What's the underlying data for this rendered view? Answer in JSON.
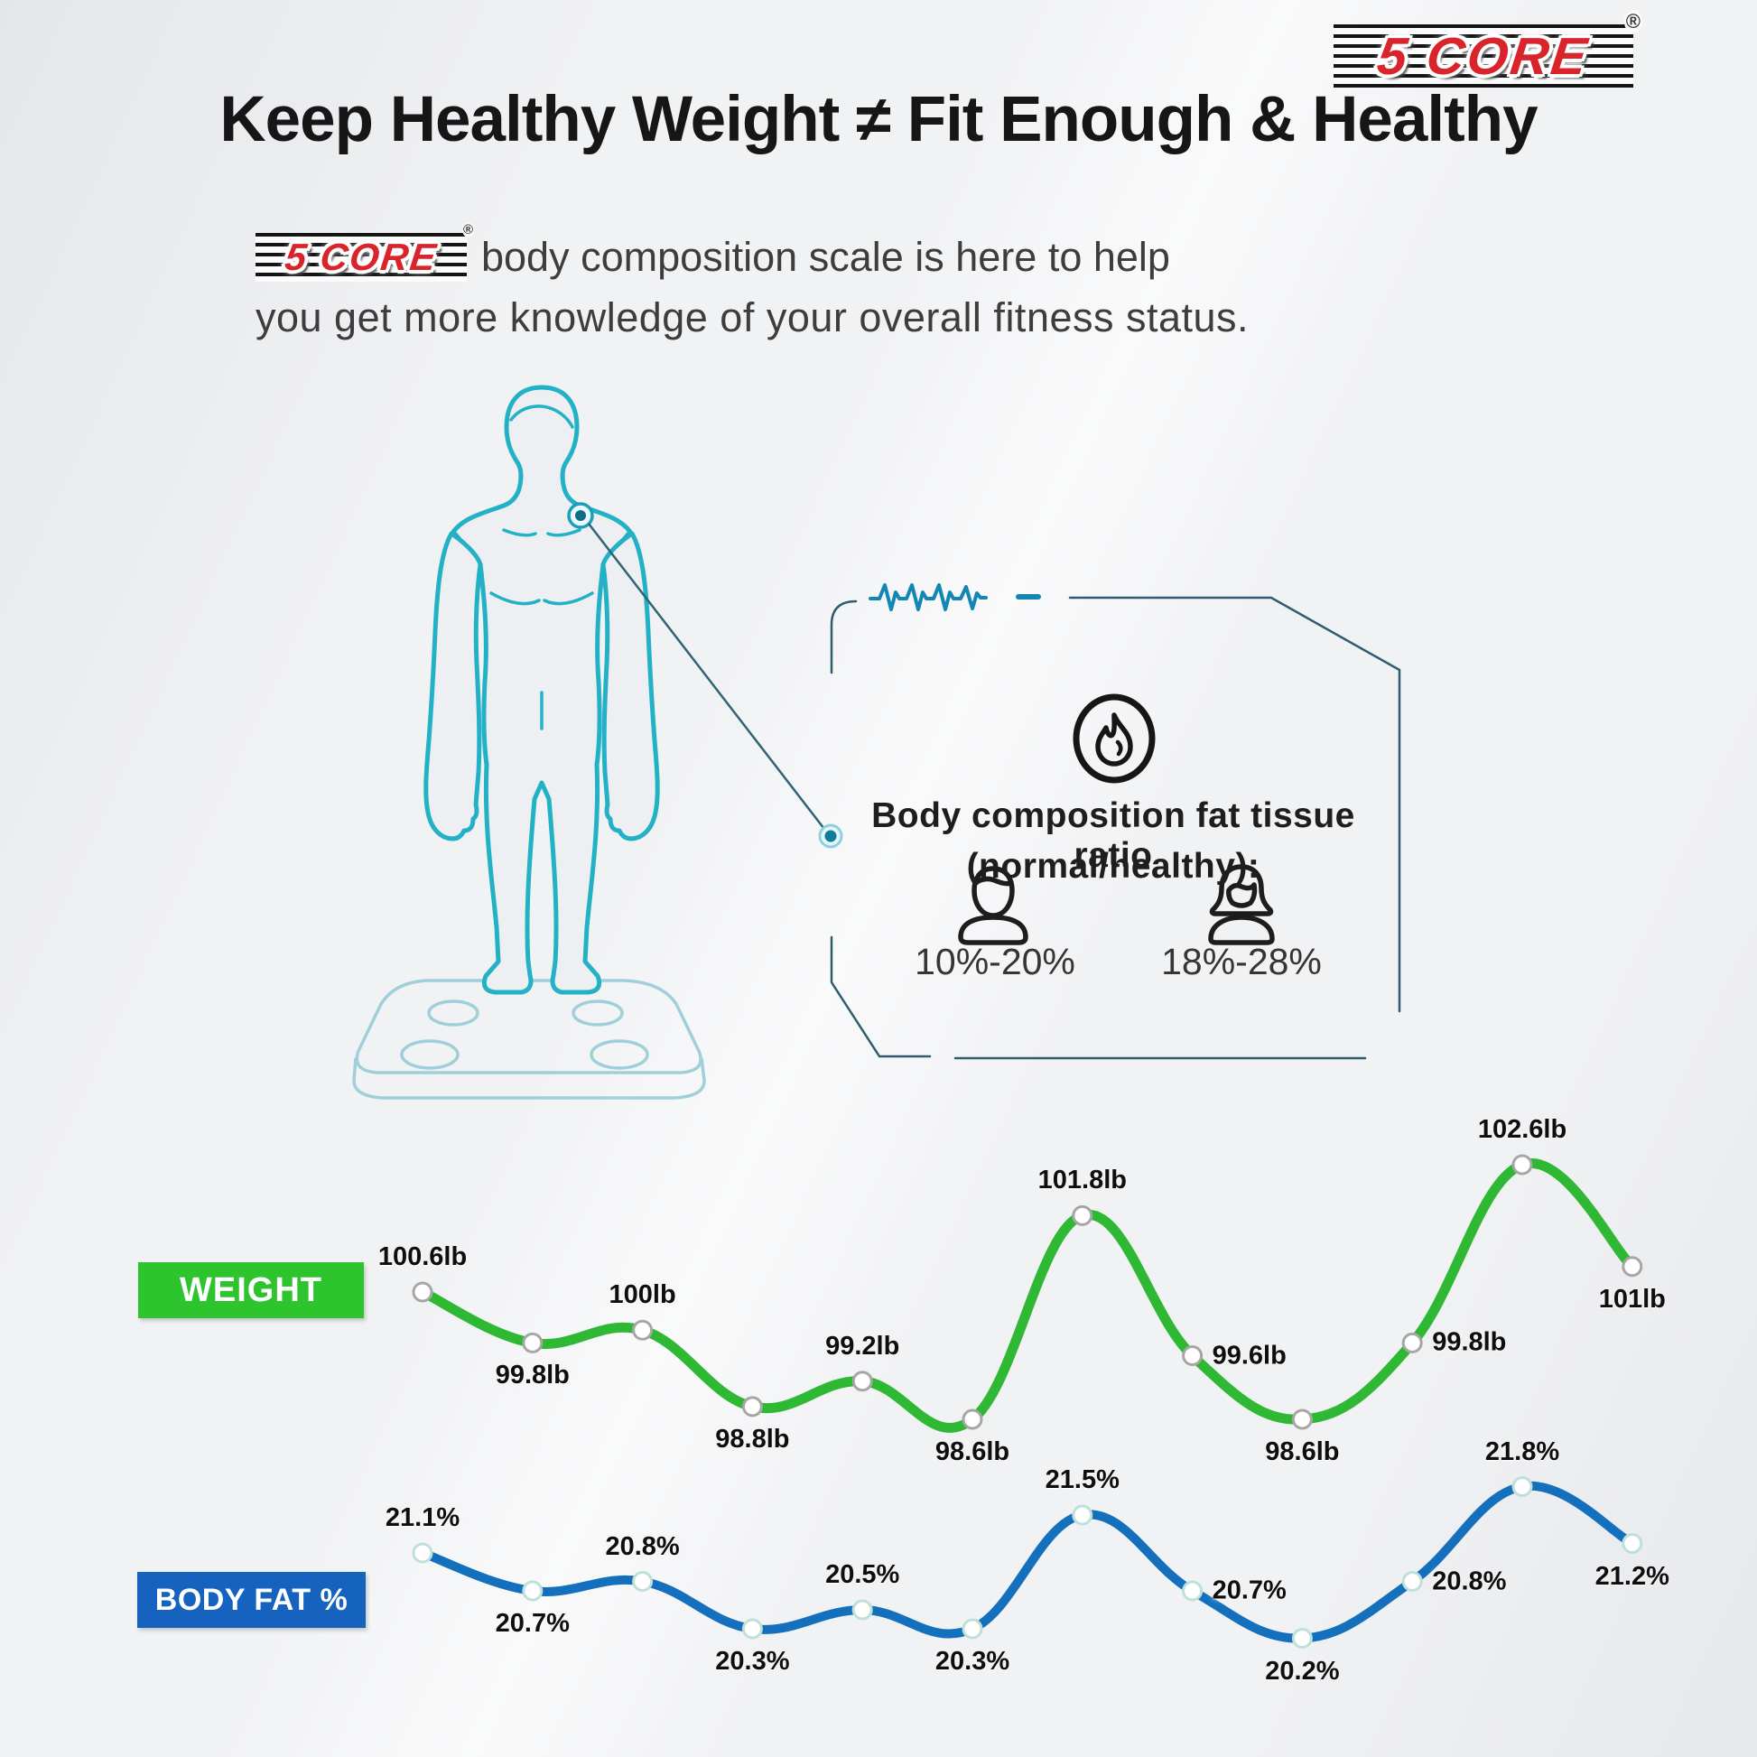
{
  "brand": {
    "name": "5 CORE",
    "registered": "®"
  },
  "heading": {
    "text": "Keep Healthy Weight ≠ Fit Enough & Healthy"
  },
  "intro": {
    "line1": "body composition scale is here to help",
    "line2": "you get more knowledge of your overall fitness status."
  },
  "info_box": {
    "title_line1": "Body composition fat tissue ratio",
    "title_line2": "(normal/healthy):",
    "male_range": "10%-20%",
    "female_range": "18%-28%"
  },
  "colors": {
    "weight_line": "#2eb834",
    "weight_chip": "#2ec42e",
    "bodyfat_line": "#1470bd",
    "bodyfat_chip": "#1563be",
    "body_outline": "#23b1c6",
    "frame": "#2e5d6d"
  },
  "chart_data": [
    {
      "type": "line",
      "name": "weight-trend",
      "legend_label": "WEIGHT",
      "unit": "lb",
      "color": "#2eb834",
      "marker_ring": "#a6a6a6",
      "values": [
        100.6,
        99.8,
        100,
        98.8,
        99.2,
        98.6,
        101.8,
        99.6,
        98.6,
        99.8,
        102.6,
        101
      ],
      "labels": [
        "100.6lb",
        "99.8lb",
        "100lb",
        "98.8lb",
        "99.2lb",
        "98.6lb",
        "101.8lb",
        "99.6lb",
        "98.6lb",
        "99.8lb",
        "102.6lb",
        "101lb"
      ],
      "label_positions": [
        "above",
        "below",
        "above",
        "below",
        "above",
        "below",
        "above",
        "right",
        "below",
        "right",
        "above",
        "below"
      ],
      "ylim": [
        98.6,
        102.6
      ],
      "grid": false,
      "legend_position": "left"
    },
    {
      "type": "line",
      "name": "body-fat-trend",
      "legend_label": "BODY FAT %",
      "unit": "%",
      "color": "#1470bd",
      "marker_ring": "#bfe0d8",
      "values": [
        21.1,
        20.7,
        20.8,
        20.3,
        20.5,
        20.3,
        21.5,
        20.7,
        20.2,
        20.8,
        21.8,
        21.2
      ],
      "labels": [
        "21.1%",
        "20.7%",
        "20.8%",
        "20.3%",
        "20.5%",
        "20.3%",
        "21.5%",
        "20.7%",
        "20.2%",
        "20.8%",
        "21.8%",
        "21.2%"
      ],
      "label_positions": [
        "above",
        "below",
        "above",
        "below",
        "above",
        "below",
        "above",
        "right",
        "below",
        "right",
        "above",
        "below"
      ],
      "ylim": [
        20.2,
        21.8
      ],
      "grid": false,
      "legend_position": "left"
    }
  ]
}
